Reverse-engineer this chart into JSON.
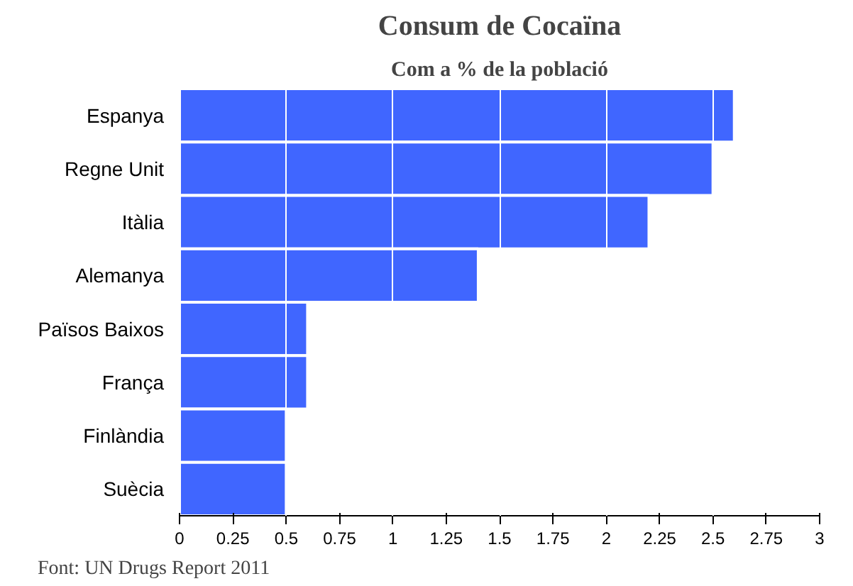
{
  "chart_data": {
    "type": "bar",
    "orientation": "horizontal",
    "title": "Consum de Cocaïna",
    "subtitle": "Com a % de la població",
    "categories": [
      "Espanya",
      "Regne Unit",
      "Itàlia",
      "Alemanya",
      "Països Baixos",
      "França",
      "Finlàndia",
      "Suècia"
    ],
    "values": [
      2.6,
      2.5,
      2.2,
      1.4,
      0.6,
      0.6,
      0.5,
      0.5
    ],
    "color": "#4066ff",
    "xlim": [
      0,
      3
    ],
    "xticks": [
      0,
      0.25,
      0.5,
      0.75,
      1,
      1.25,
      1.5,
      1.75,
      2,
      2.25,
      2.5,
      2.75,
      3
    ],
    "grid": "x",
    "annotations": [
      "Font: UN Drugs Report 2011"
    ]
  }
}
